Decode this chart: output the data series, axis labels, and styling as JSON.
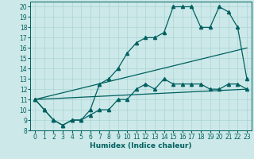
{
  "xlabel": "Humidex (Indice chaleur)",
  "xlim": [
    -0.5,
    23.5
  ],
  "ylim": [
    8,
    20.5
  ],
  "xticks": [
    0,
    1,
    2,
    3,
    4,
    5,
    6,
    7,
    8,
    9,
    10,
    11,
    12,
    13,
    14,
    15,
    16,
    17,
    18,
    19,
    20,
    21,
    22,
    23
  ],
  "yticks": [
    8,
    9,
    10,
    11,
    12,
    13,
    14,
    15,
    16,
    17,
    18,
    19,
    20
  ],
  "bg_color": "#cce8e8",
  "grid_color": "#aad4d4",
  "line_color": "#006060",
  "curve1_x": [
    0,
    1,
    2,
    3,
    4,
    5,
    6,
    7,
    8,
    9,
    10,
    11,
    12,
    13,
    14,
    15,
    16,
    17,
    18,
    19,
    20,
    21,
    22,
    23
  ],
  "curve1_y": [
    11,
    10,
    9,
    8.5,
    9,
    9,
    9.5,
    10,
    10,
    11,
    11,
    12,
    12.5,
    12,
    13,
    12.5,
    12.5,
    12.5,
    12.5,
    12,
    12,
    12.5,
    12.5,
    12
  ],
  "curve2_x": [
    0,
    1,
    2,
    3,
    4,
    5,
    6,
    7,
    8,
    9,
    10,
    11,
    12,
    13,
    14,
    15,
    16,
    17,
    18,
    19,
    20,
    21,
    22,
    23
  ],
  "curve2_y": [
    11,
    10,
    9,
    8.5,
    9,
    9,
    10,
    12.5,
    13,
    14,
    15.5,
    16.5,
    17,
    17,
    17.5,
    20,
    20,
    20,
    18,
    18,
    20,
    19.5,
    18,
    13
  ],
  "line1_x": [
    0,
    23
  ],
  "line1_y": [
    11,
    12
  ],
  "line2_x": [
    0,
    23
  ],
  "line2_y": [
    11,
    16
  ],
  "marker": "^",
  "marker_size": 3,
  "linewidth": 0.9,
  "axis_fontsize": 6.5,
  "tick_fontsize": 5.5
}
